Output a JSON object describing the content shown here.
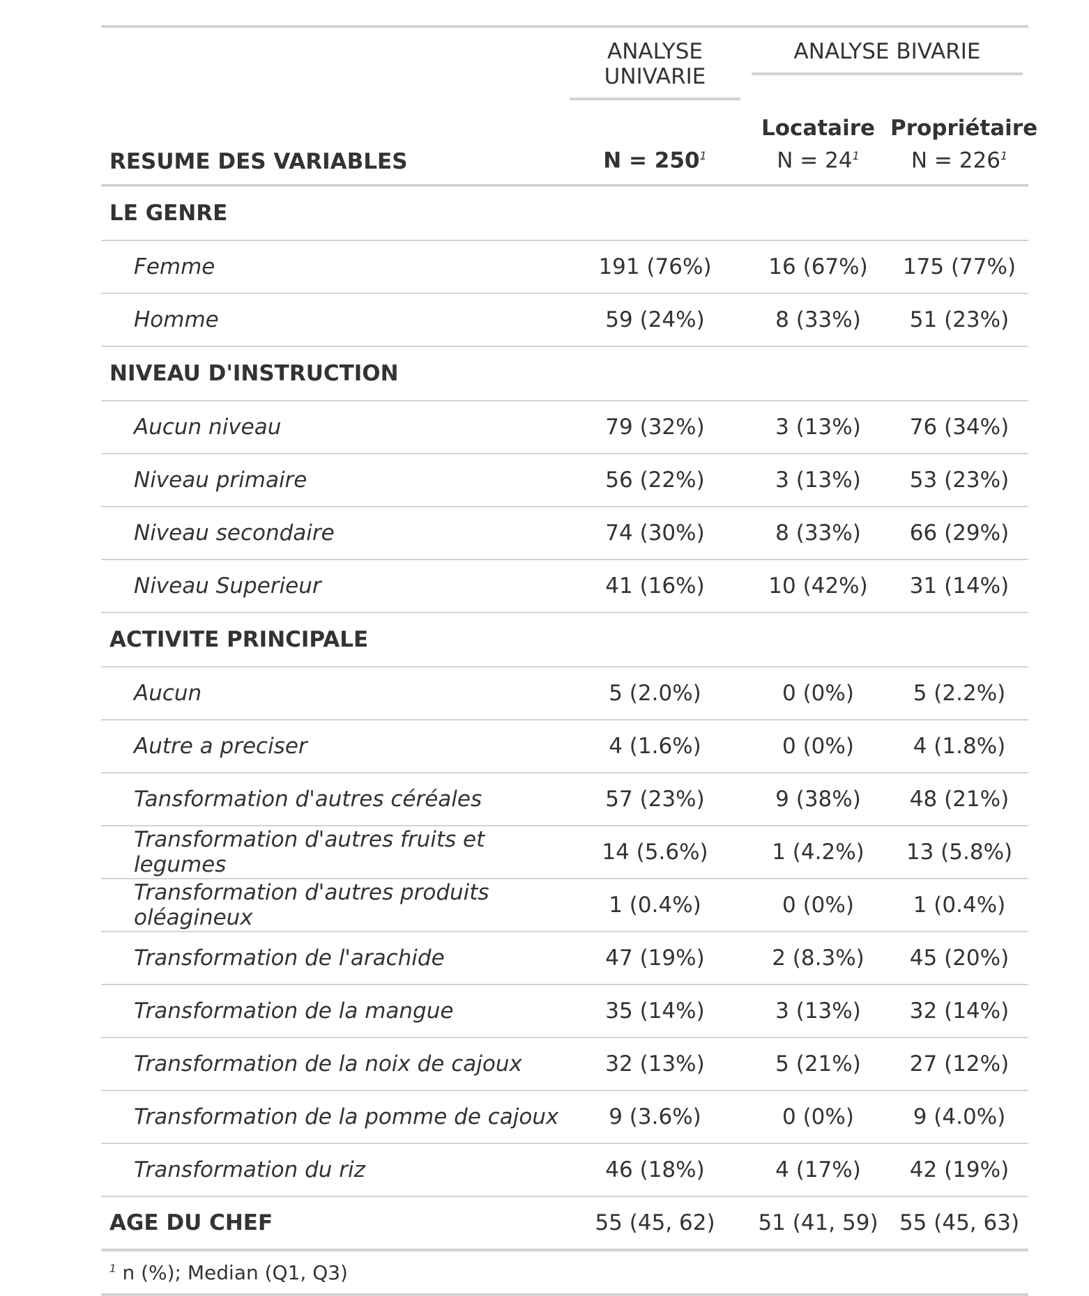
{
  "header": {
    "spanner_univariate": "ANALYSE UNIVARIE",
    "spanner_bivariate": "ANALYSE BIVARIE",
    "stub_label": "RESUME DES VARIABLES",
    "col_total_n": "N = 250",
    "col_locataire_label": "Locataire",
    "col_locataire_n": "N = 24",
    "col_proprietaire_label": "Propriétaire",
    "col_proprietaire_n": "N = 226",
    "footnote_mark": "1"
  },
  "groups": [
    {
      "label": "LE GENRE",
      "rows": [
        {
          "label": "Femme",
          "total": "191 (76%)",
          "locataire": "16 (67%)",
          "proprietaire": "175 (77%)"
        },
        {
          "label": "Homme",
          "total": "59 (24%)",
          "locataire": "8 (33%)",
          "proprietaire": "51 (23%)"
        }
      ]
    },
    {
      "label": "NIVEAU D'INSTRUCTION",
      "rows": [
        {
          "label": "Aucun niveau",
          "total": "79 (32%)",
          "locataire": "3 (13%)",
          "proprietaire": "76 (34%)"
        },
        {
          "label": "Niveau primaire",
          "total": "56 (22%)",
          "locataire": "3 (13%)",
          "proprietaire": "53 (23%)"
        },
        {
          "label": "Niveau secondaire",
          "total": "74 (30%)",
          "locataire": "8 (33%)",
          "proprietaire": "66 (29%)"
        },
        {
          "label": "Niveau Superieur",
          "total": "41 (16%)",
          "locataire": "10 (42%)",
          "proprietaire": "31 (14%)"
        }
      ]
    },
    {
      "label": "ACTIVITE PRINCIPALE",
      "rows": [
        {
          "label": "Aucun",
          "total": "5 (2.0%)",
          "locataire": "0 (0%)",
          "proprietaire": "5 (2.2%)"
        },
        {
          "label": "Autre a preciser",
          "total": "4 (1.6%)",
          "locataire": "0 (0%)",
          "proprietaire": "4 (1.8%)"
        },
        {
          "label": "Tansformation d'autres céréales",
          "total": "57 (23%)",
          "locataire": "9 (38%)",
          "proprietaire": "48 (21%)"
        },
        {
          "label": "Transformation d'autres fruits et legumes",
          "total": "14 (5.6%)",
          "locataire": "1 (4.2%)",
          "proprietaire": "13 (5.8%)"
        },
        {
          "label": "Transformation d'autres produits oléagineux",
          "total": "1 (0.4%)",
          "locataire": "0 (0%)",
          "proprietaire": "1 (0.4%)"
        },
        {
          "label": "Transformation de l'arachide",
          "total": "47 (19%)",
          "locataire": "2 (8.3%)",
          "proprietaire": "45 (20%)"
        },
        {
          "label": "Transformation de la mangue",
          "total": "35 (14%)",
          "locataire": "3 (13%)",
          "proprietaire": "32 (14%)"
        },
        {
          "label": "Transformation de la noix de cajoux",
          "total": "32 (13%)",
          "locataire": "5 (21%)",
          "proprietaire": "27 (12%)"
        },
        {
          "label": "Transformation de la pomme de cajoux",
          "total": "9 (3.6%)",
          "locataire": "0 (0%)",
          "proprietaire": "9 (4.0%)"
        },
        {
          "label": "Transformation du riz",
          "total": "46 (18%)",
          "locataire": "4 (17%)",
          "proprietaire": "42 (19%)"
        }
      ]
    }
  ],
  "age_row": {
    "label": "AGE DU CHEF",
    "total": "55 (45, 62)",
    "locataire": "51 (41, 59)",
    "proprietaire": "55 (45, 63)"
  },
  "footnote": {
    "mark": "1",
    "text": "n (%); Median (Q1, Q3)"
  }
}
